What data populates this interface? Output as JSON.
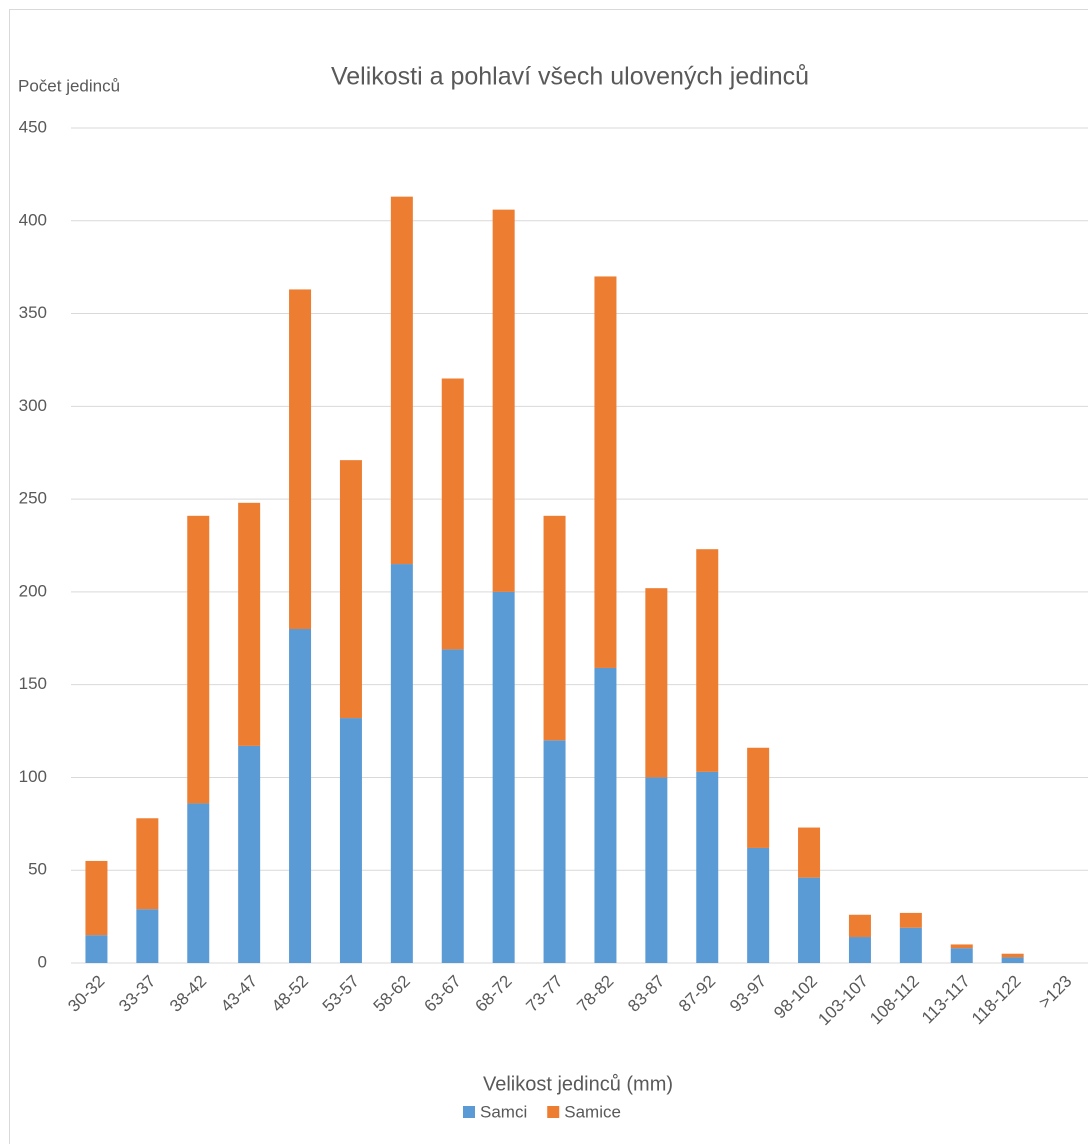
{
  "chart_data": {
    "type": "stacked_bar",
    "title": "Velikosti a pohlaví všech ulovených jedinců",
    "y_label": "Počet jedinců",
    "x_label": "Velikost jedinců (mm)",
    "categories": [
      "30-32",
      "33-37",
      "38-42",
      "43-47",
      "48-52",
      "53-57",
      "58-62",
      "63-67",
      "68-72",
      "73-77",
      "78-82",
      "83-87",
      "87-92",
      "93-97",
      "98-102",
      "103-107",
      "108-112",
      "113-117",
      "118-122",
      ">123"
    ],
    "series": [
      {
        "name": "Samci",
        "color": "#5b9bd5",
        "values": [
          15,
          29,
          86,
          117,
          180,
          132,
          215,
          169,
          200,
          120,
          159,
          100,
          103,
          62,
          46,
          14,
          19,
          8,
          3,
          0
        ]
      },
      {
        "name": "Samice",
        "color": "#ed7d31",
        "values": [
          40,
          49,
          155,
          131,
          183,
          139,
          198,
          146,
          206,
          121,
          211,
          102,
          120,
          54,
          27,
          12,
          8,
          2,
          2,
          0
        ]
      }
    ],
    "ylim": [
      0,
      450
    ],
    "yticks": [
      0,
      50,
      100,
      150,
      200,
      250,
      300,
      350,
      400,
      450
    ],
    "grid": true,
    "legend": "bottom"
  }
}
